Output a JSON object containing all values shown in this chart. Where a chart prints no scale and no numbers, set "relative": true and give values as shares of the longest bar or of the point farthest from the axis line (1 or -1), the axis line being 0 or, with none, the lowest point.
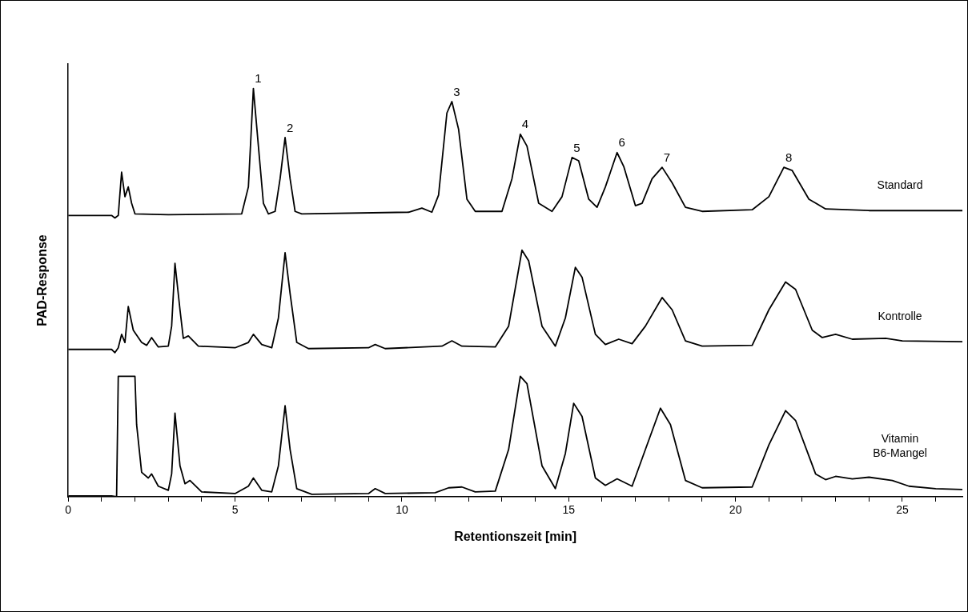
{
  "chart_data": {
    "type": "line",
    "relative": true,
    "xlabel": "Retentionszeit [min]",
    "ylabel": "PAD-Response",
    "xlim": [
      0,
      26.8
    ],
    "xticks": [
      0,
      {
        "value": 1,
        "label": null
      },
      {
        "value": 2,
        "label": null
      },
      {
        "value": 3,
        "label": null
      },
      {
        "value": 4,
        "label": null
      },
      5,
      {
        "value": 6,
        "label": null
      },
      {
        "value": 7,
        "label": null
      },
      {
        "value": 8,
        "label": null
      },
      {
        "value": 9,
        "label": null
      },
      10,
      {
        "value": 11,
        "label": null
      },
      {
        "value": 12,
        "label": null
      },
      {
        "value": 13,
        "label": null
      },
      {
        "value": 14,
        "label": null
      },
      15,
      {
        "value": 16,
        "label": null
      },
      {
        "value": 17,
        "label": null
      },
      {
        "value": 18,
        "label": null
      },
      {
        "value": 19,
        "label": null
      },
      20,
      {
        "value": 21,
        "label": null
      },
      {
        "value": 22,
        "label": null
      },
      {
        "value": 23,
        "label": null
      },
      {
        "value": 24,
        "label": null
      },
      25,
      {
        "value": 26,
        "label": null
      }
    ],
    "grid": false,
    "legend": false,
    "marker": "none",
    "line_style": "solid",
    "annotations": [
      {
        "text": "1",
        "x": 5.55,
        "y": 1.0
      },
      {
        "text": "2",
        "x": 6.5,
        "y": 0.88
      },
      {
        "text": "3",
        "x": 11.5,
        "y": 0.968
      },
      {
        "text": "4",
        "x": 13.55,
        "y": 0.888
      },
      {
        "text": "5",
        "x": 15.1,
        "y": 0.831
      },
      {
        "text": "6",
        "x": 16.45,
        "y": 0.843
      },
      {
        "text": "7",
        "x": 17.8,
        "y": 0.807
      },
      {
        "text": "8",
        "x": 21.45,
        "y": 0.807
      }
    ],
    "series": [
      {
        "name": "Standard",
        "color": "#000000",
        "x": [
          0,
          1.3,
          1.4,
          1.5,
          1.6,
          1.7,
          1.8,
          1.9,
          2.0,
          3,
          5.2,
          5.4,
          5.55,
          5.7,
          5.85,
          6.0,
          6.2,
          6.35,
          6.5,
          6.65,
          6.8,
          7.0,
          10.2,
          10.6,
          10.9,
          11.1,
          11.35,
          11.5,
          11.7,
          11.95,
          12.2,
          13.0,
          13.3,
          13.55,
          13.75,
          14.1,
          14.5,
          14.8,
          15.1,
          15.3,
          15.6,
          15.85,
          16.1,
          16.45,
          16.65,
          17.0,
          17.2,
          17.5,
          17.8,
          18.1,
          18.5,
          19,
          20.5,
          21.0,
          21.45,
          21.7,
          22.2,
          22.7,
          24,
          26.8
        ],
        "values": [
          0.689,
          0.689,
          0.683,
          0.689,
          0.795,
          0.735,
          0.759,
          0.719,
          0.693,
          0.691,
          0.693,
          0.759,
          1.0,
          0.859,
          0.719,
          0.693,
          0.699,
          0.779,
          0.88,
          0.779,
          0.699,
          0.693,
          0.697,
          0.707,
          0.697,
          0.739,
          0.94,
          0.968,
          0.9,
          0.729,
          0.699,
          0.699,
          0.779,
          0.888,
          0.859,
          0.719,
          0.699,
          0.735,
          0.831,
          0.823,
          0.729,
          0.709,
          0.759,
          0.843,
          0.809,
          0.713,
          0.719,
          0.779,
          0.807,
          0.769,
          0.709,
          0.699,
          0.703,
          0.735,
          0.807,
          0.799,
          0.729,
          0.705,
          0.701,
          0.701
        ]
      },
      {
        "name": "Kontrolle",
        "color": "#000000",
        "x": [
          0,
          1.3,
          1.4,
          1.5,
          1.6,
          1.7,
          1.8,
          1.95,
          2.2,
          2.35,
          2.5,
          2.7,
          3.0,
          3.1,
          3.2,
          3.35,
          3.45,
          3.6,
          3.9,
          5.0,
          5.4,
          5.55,
          5.8,
          6.1,
          6.3,
          6.5,
          6.65,
          6.85,
          7.2,
          9.0,
          9.2,
          9.5,
          11.2,
          11.5,
          11.8,
          12.8,
          13.2,
          13.6,
          13.8,
          14.2,
          14.6,
          14.9,
          15.2,
          15.4,
          15.8,
          16.1,
          16.5,
          16.9,
          17.3,
          17.8,
          18.1,
          18.5,
          19,
          20.5,
          21.0,
          21.5,
          21.8,
          22.3,
          22.6,
          23.0,
          23.5,
          24.5,
          25,
          26.8
        ],
        "values": [
          0.361,
          0.361,
          0.353,
          0.365,
          0.398,
          0.378,
          0.466,
          0.408,
          0.378,
          0.371,
          0.39,
          0.367,
          0.369,
          0.418,
          0.572,
          0.458,
          0.388,
          0.394,
          0.369,
          0.365,
          0.378,
          0.398,
          0.373,
          0.365,
          0.438,
          0.598,
          0.498,
          0.378,
          0.363,
          0.365,
          0.373,
          0.363,
          0.369,
          0.382,
          0.369,
          0.367,
          0.418,
          0.604,
          0.578,
          0.418,
          0.369,
          0.438,
          0.562,
          0.538,
          0.398,
          0.373,
          0.386,
          0.375,
          0.418,
          0.488,
          0.458,
          0.382,
          0.369,
          0.371,
          0.458,
          0.526,
          0.508,
          0.408,
          0.39,
          0.398,
          0.386,
          0.388,
          0.382,
          0.38
        ]
      },
      {
        "name": "Vitamin B6-Mangel",
        "color": "#000000",
        "x": [
          0,
          1.3,
          1.45,
          1.5,
          2.0,
          2.05,
          2.2,
          2.4,
          2.5,
          2.7,
          3.0,
          3.1,
          3.2,
          3.35,
          3.5,
          3.65,
          4.0,
          5.0,
          5.4,
          5.55,
          5.8,
          6.1,
          6.3,
          6.5,
          6.65,
          6.85,
          7.3,
          9.0,
          9.2,
          9.5,
          11.0,
          11.4,
          11.8,
          12.2,
          12.8,
          13.2,
          13.55,
          13.75,
          14.2,
          14.6,
          14.9,
          15.15,
          15.4,
          15.8,
          16.1,
          16.45,
          16.9,
          17.3,
          17.75,
          18.05,
          18.5,
          19,
          20.5,
          21.0,
          21.5,
          21.8,
          22.4,
          22.7,
          23.0,
          23.5,
          24.0,
          24.7,
          25.2,
          26,
          26.8
        ],
        "values": [
          0.002,
          0.002,
          0,
          0.295,
          0.295,
          0.177,
          0.06,
          0.046,
          0.056,
          0.026,
          0.016,
          0.056,
          0.205,
          0.076,
          0.032,
          0.04,
          0.012,
          0.008,
          0.026,
          0.046,
          0.016,
          0.012,
          0.076,
          0.223,
          0.116,
          0.02,
          0.006,
          0.008,
          0.02,
          0.008,
          0.01,
          0.022,
          0.024,
          0.012,
          0.014,
          0.116,
          0.295,
          0.277,
          0.076,
          0.02,
          0.106,
          0.229,
          0.197,
          0.046,
          0.028,
          0.044,
          0.026,
          0.116,
          0.217,
          0.177,
          0.04,
          0.022,
          0.024,
          0.127,
          0.211,
          0.187,
          0.056,
          0.042,
          0.05,
          0.044,
          0.048,
          0.04,
          0.026,
          0.02,
          0.018
        ]
      }
    ]
  }
}
